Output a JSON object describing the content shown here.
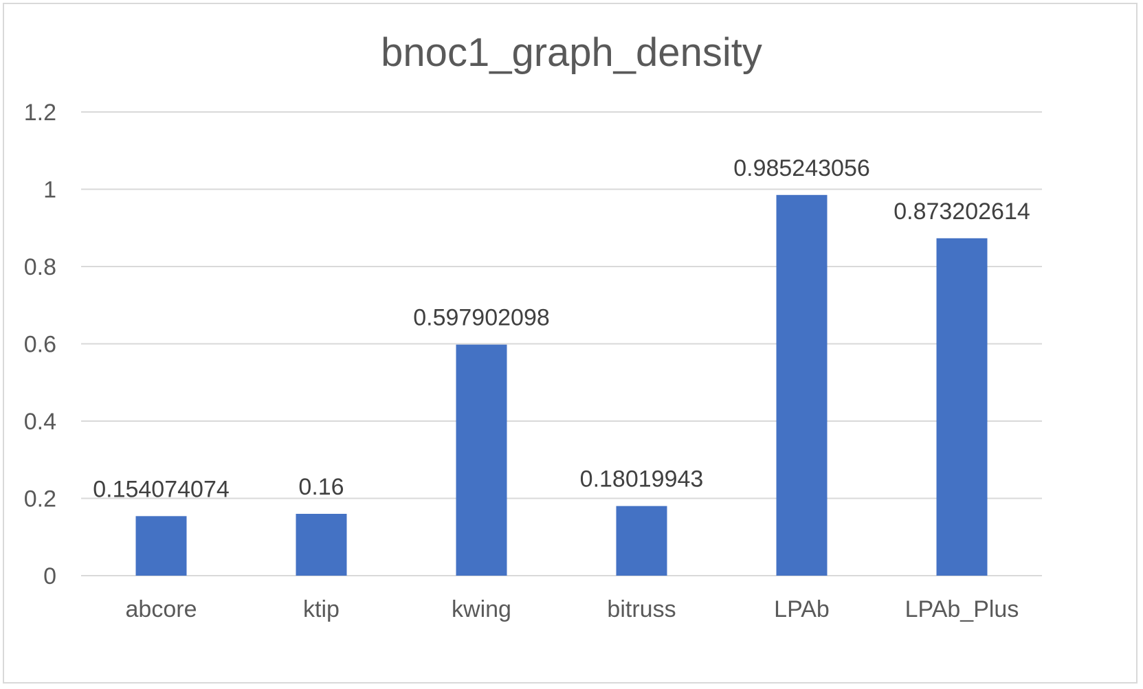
{
  "chart_data": {
    "type": "bar",
    "title": "bnoc1_graph_density",
    "categories": [
      "abcore",
      "ktip",
      "kwing",
      "bitruss",
      "LPAb",
      "LPAb_Plus"
    ],
    "values": [
      0.154074074,
      0.16,
      0.597902098,
      0.18019943,
      0.985243056,
      0.873202614
    ],
    "data_labels": [
      "0.154074074",
      "0.16",
      "0.597902098",
      "0.18019943",
      "0.985243056",
      "0.873202614"
    ],
    "y_ticks": [
      "0",
      "0.2",
      "0.4",
      "0.6",
      "0.8",
      "1",
      "1.2"
    ],
    "ylim": [
      0,
      1.2
    ],
    "grid": true,
    "legend": "none",
    "bar_color": "#4472C4",
    "gridline_color": "#d9d9d9"
  }
}
